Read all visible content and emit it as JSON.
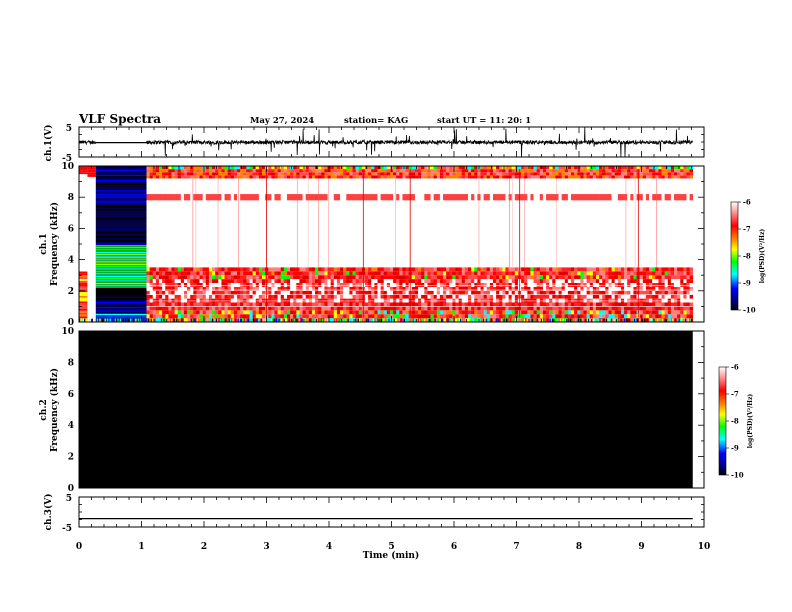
{
  "header": {
    "title": "VLF Spectra",
    "date": "May 27, 2024",
    "station": "station= KAG",
    "start": "start  UT =   11: 20: 1"
  },
  "colors": {
    "signal_line": "#000000",
    "spectrogram_background": "#ffffff",
    "empty_spectrogram": "#000000",
    "colormap": [
      "#000000",
      "#000080",
      "#0000ff",
      "#00ffff",
      "#00ff00",
      "#ffff00",
      "#ff8000",
      "#ff0000",
      "#ff8080",
      "#ffffff"
    ]
  },
  "chart_data": [
    {
      "type": "line",
      "panel": "ch1-signal",
      "ylabel": "ch.1(V)",
      "ylim": [
        -5,
        5
      ],
      "yticks": [
        "5",
        "-5"
      ],
      "xlim": [
        0,
        10
      ],
      "note_values": {
        "gap_x": [
          0.27,
          1.08
        ],
        "gap_level": -0.2,
        "baseline": -0.1,
        "end_x": 9.82
      }
    },
    {
      "type": "heatmap",
      "panel": "ch1-spectrogram",
      "ylabel_line1": "ch.1",
      "ylabel_line2": "Frequency (kHz)",
      "xlim": [
        0,
        10
      ],
      "ylim": [
        0,
        10
      ],
      "yticks": [
        "0",
        "2",
        "4",
        "6",
        "8",
        "10"
      ],
      "colorbar": {
        "ticks": [
          "-6",
          "-7",
          "-8",
          "-9",
          "-10"
        ],
        "range": [
          -10,
          -6
        ],
        "label": "log(PSD)(V²/Hz)"
      },
      "segments": [
        {
          "x": [
            0.0,
            0.27
          ],
          "description_level": "mixed"
        },
        {
          "x": [
            0.27,
            1.08
          ],
          "description_level": "saturated-banded"
        },
        {
          "x": [
            1.08,
            9.82
          ],
          "description_level": "red-bands"
        }
      ],
      "bands_khz": [
        [
          0.0,
          3.5
        ],
        [
          7.8,
          8.2
        ],
        [
          9.2,
          10.0
        ]
      ]
    },
    {
      "type": "heatmap",
      "panel": "ch2-spectrogram",
      "ylabel_line1": "ch.2",
      "ylabel_line2": "Frequency (kHz)",
      "xlim": [
        0,
        10
      ],
      "ylim": [
        0,
        10
      ],
      "yticks": [
        "0",
        "2",
        "4",
        "6",
        "8",
        "10"
      ],
      "colorbar": {
        "ticks": [
          "-6",
          "-7",
          "-8",
          "-9",
          "-10"
        ],
        "range": [
          -10,
          -6
        ],
        "label": "log(PSD)(V²/Hz)"
      },
      "uniform_level": -10
    },
    {
      "type": "line",
      "panel": "ch3-signal",
      "ylabel": "ch.3(V)",
      "ylim": [
        -5,
        5
      ],
      "yticks": [
        "5",
        "-5"
      ],
      "xlim": [
        0,
        10
      ],
      "xlabel": "Time  (min)",
      "xticks": [
        "0",
        "1",
        "2",
        "3",
        "4",
        "5",
        "6",
        "7",
        "8",
        "9",
        "10"
      ],
      "constant_value": -2.2,
      "end_x": 9.82
    }
  ]
}
